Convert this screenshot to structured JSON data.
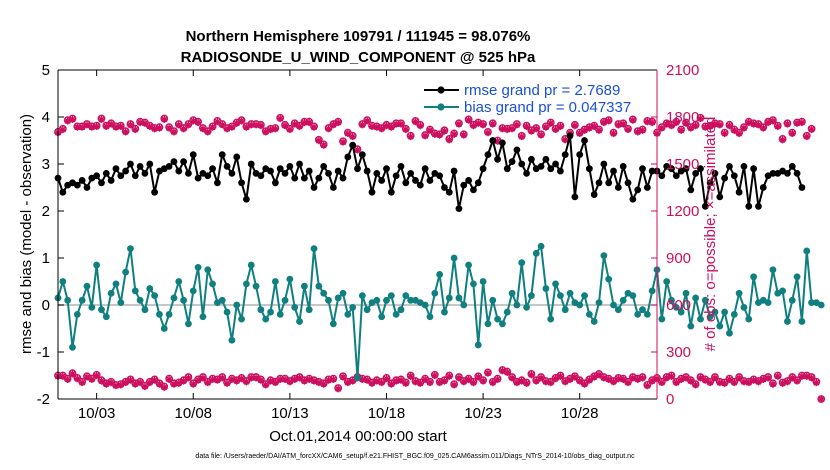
{
  "chart_data": {
    "type": "line",
    "title_line1": "Northern Hemisphere 109791 / 111945 = 98.076%",
    "title_line2": "RADIOSONDE_U_WIND_COMPONENT @ 525 hPa",
    "xlabel": "Oct.01,2014 00:00:00 start",
    "ylabel": "rmse and bias (model - observation)",
    "ylabel_right": "# of obs: o=possible; ×=assimilated",
    "footnote": "data file: /Users/raeder/DAI/ATM_forcXX/CAM6_setup/f.e21.FHIST_BGC.f09_025.CAM6assim.011/Diags_NTrS_2014-10/obs_diag_output.nc",
    "xlim": [
      1.0,
      32.0
    ],
    "ylim": [
      -2,
      5
    ],
    "ylim_right": [
      0,
      2100
    ],
    "x_ticks": [
      3,
      8,
      13,
      18,
      23,
      28
    ],
    "x_tick_labels": [
      "10/03",
      "10/08",
      "10/13",
      "10/18",
      "10/23",
      "10/28"
    ],
    "y_ticks": [
      "-2",
      "-1",
      "0",
      "1",
      "2",
      "3",
      "4",
      "5"
    ],
    "y_ticks_right": [
      "0",
      "300",
      "600",
      "900",
      "1200",
      "1500",
      "1800",
      "2100"
    ],
    "x_start": 1.0,
    "x_step": 0.25,
    "legend": [
      {
        "name": "rmse grand pr = 2.7689",
        "color": "#000000"
      },
      {
        "name": "bias grand pr = 0.047337",
        "color": "#0f7f7f"
      }
    ],
    "colors": {
      "rmse": "#000000",
      "bias": "#0f7f7f",
      "obs": "#cc0f5f",
      "zero": "#b3b3b3"
    },
    "series": [
      {
        "name": "rmse",
        "values": [
          2.7,
          2.4,
          2.55,
          2.6,
          2.55,
          2.65,
          2.5,
          2.7,
          2.75,
          2.6,
          2.8,
          2.65,
          2.9,
          2.75,
          2.85,
          3.0,
          2.75,
          2.95,
          2.8,
          3.0,
          2.4,
          2.85,
          2.9,
          2.95,
          3.05,
          2.85,
          3.05,
          2.8,
          3.2,
          2.7,
          2.8,
          2.75,
          2.9,
          2.6,
          3.2,
          2.95,
          2.8,
          3.15,
          2.6,
          2.25,
          3.0,
          2.8,
          2.75,
          2.9,
          2.85,
          2.6,
          2.9,
          2.8,
          2.95,
          2.7,
          3.0,
          2.7,
          2.85,
          2.5,
          2.7,
          2.95,
          2.8,
          2.5,
          2.85,
          2.7,
          3.15,
          3.4,
          2.9,
          3.2,
          2.85,
          2.4,
          2.8,
          2.65,
          2.9,
          2.4,
          2.75,
          2.95,
          2.6,
          2.8,
          2.65,
          2.55,
          2.9,
          2.65,
          2.8,
          2.75,
          2.5,
          2.4,
          2.85,
          2.05,
          2.55,
          2.65,
          2.45,
          2.6,
          2.9,
          3.2,
          3.5,
          3.1,
          3.45,
          2.9,
          3.05,
          3.3,
          3.0,
          2.8,
          3.1,
          2.9,
          2.95,
          3.1,
          2.9,
          3.0,
          2.85,
          3.2,
          3.6,
          2.3,
          3.2,
          3.5,
          2.9,
          2.35,
          2.6,
          3.0,
          2.6,
          2.85,
          2.5,
          2.95,
          2.6,
          2.25,
          2.45,
          2.9,
          2.5,
          2.85,
          2.85,
          2.75,
          2.95,
          2.9,
          2.75,
          2.85,
          2.9,
          2.45,
          2.8,
          2.9,
          2.1,
          2.6,
          2.8,
          2.3,
          2.7,
          2.95,
          2.75,
          2.4,
          2.95,
          2.1,
          2.9,
          2.1,
          2.5,
          2.75,
          2.8,
          2.8,
          2.85,
          2.8,
          2.95,
          2.8,
          2.5
        ],
        "style": "black dots with line"
      },
      {
        "name": "bias",
        "values": [
          0.15,
          0.5,
          0.1,
          -0.9,
          -0.2,
          0.1,
          0.4,
          -0.05,
          0.85,
          -0.1,
          -0.25,
          0.25,
          0.45,
          0.05,
          0.7,
          1.2,
          0.3,
          0.1,
          -0.1,
          0.35,
          0.2,
          -0.2,
          -0.5,
          -0.2,
          0.15,
          0.5,
          0.1,
          -0.4,
          0.3,
          0.8,
          -0.25,
          0.75,
          0.45,
          0.05,
          0.1,
          -0.15,
          -0.75,
          0.0,
          -0.3,
          0.45,
          0.85,
          0.4,
          -0.1,
          -0.3,
          -0.15,
          0.5,
          -0.2,
          0.1,
          0.55,
          -0.05,
          -0.35,
          0.4,
          -0.1,
          1.2,
          0.4,
          0.25,
          0.1,
          -0.4,
          0.15,
          0.25,
          -0.2,
          -0.05,
          -1.55,
          0.2,
          -0.1,
          0.05,
          0.1,
          -0.25,
          0.1,
          0.2,
          -0.2,
          -0.1,
          0.2,
          0.1,
          0.1,
          0.05,
          0.0,
          -0.25,
          0.25,
          0.65,
          -0.15,
          0.15,
          1.0,
          0.15,
          0.0,
          0.85,
          0.45,
          -0.85,
          0.5,
          -0.4,
          0.1,
          -0.3,
          -0.4,
          -0.15,
          0.25,
          0.0,
          0.9,
          -0.05,
          0.2,
          1.1,
          1.25,
          0.35,
          -0.3,
          0.45,
          0.2,
          -0.1,
          0.25,
          0.05,
          0.0,
          0.2,
          -0.2,
          -0.35,
          0.05,
          1.05,
          0.55,
          0.0,
          -0.1,
          0.1,
          0.25,
          0.2,
          -0.2,
          -0.1,
          -0.2,
          0.3,
          0.75,
          -0.3,
          0.5,
          0.1,
          -0.05,
          -0.15,
          0.25,
          -0.45,
          0.15,
          -0.3,
          0.1,
          -0.25,
          -0.15,
          -0.45,
          -0.15,
          -0.6,
          -0.2,
          0.25,
          -0.05,
          -0.3,
          0.6,
          0.05,
          0.1,
          0.05,
          0.75,
          0.25,
          0.3,
          -0.35,
          0.1,
          0.6,
          -0.35,
          1.15,
          0.05,
          0.05,
          0.0
        ],
        "style": "teal dots with line"
      },
      {
        "name": "obs possible",
        "values": [
          1705,
          1725,
          1780,
          1790,
          1740,
          1740,
          1755,
          1740,
          1745,
          1790,
          1745,
          1760,
          1740,
          1745,
          1710,
          1755,
          1725,
          1770,
          1765,
          1745,
          1730,
          1735,
          1790,
          1735,
          1710,
          1755,
          1730,
          1755,
          1780,
          1770,
          1730,
          1710,
          1740,
          1775,
          1755,
          1730,
          1740,
          1765,
          1780,
          1740,
          1755,
          1755,
          1750,
          1710,
          1725,
          1730,
          1795,
          1750,
          1725,
          1760,
          1745,
          1770,
          1770,
          1740,
          1655,
          1625,
          1730,
          1755,
          1770,
          1645,
          1700,
          1680,
          1595,
          1755,
          1780,
          1745,
          1740,
          1730,
          1750,
          1740,
          1760,
          1760,
          1725,
          1680,
          1775,
          1750,
          1685,
          1720,
          1695,
          1690,
          1715,
          1660,
          1695,
          1760,
          1690,
          1785,
          1750,
          1765,
          1755,
          1705,
          1760,
          1650,
          1730,
          1725,
          1730,
          1755,
          1680,
          1745,
          1715,
          1730,
          1690,
          1740,
          1765,
          1725,
          1745,
          1660,
          1700,
          1750,
          1700,
          1720,
          1735,
          1745,
          1720,
          1770,
          1780,
          1700,
          1755,
          1760,
          1725,
          1785,
          1710,
          1720,
          1775,
          1770,
          1700,
          1735,
          1760,
          1750,
          1770,
          1720,
          1765,
          1735,
          1750,
          1795,
          1740,
          1745,
          1760,
          1755,
          1700,
          1750,
          1720,
          1700,
          1735,
          1770,
          1760,
          1755,
          1735,
          1770,
          1780,
          1745,
          1660,
          1760,
          1700,
          1765,
          1770,
          1680,
          1725
        ],
        "style": "magenta circles (right axis)"
      },
      {
        "name": "obs assimilated",
        "values": [
          1700,
          1720,
          1775,
          1785,
          1735,
          1735,
          1750,
          1735,
          1740,
          1785,
          1740,
          1755,
          1735,
          1740,
          1705,
          1750,
          1720,
          1765,
          1760,
          1740,
          1725,
          1730,
          1785,
          1730,
          1705,
          1750,
          1725,
          1750,
          1775,
          1765,
          1725,
          1705,
          1735,
          1770,
          1750,
          1725,
          1735,
          1760,
          1775,
          1735,
          1750,
          1750,
          1745,
          1705,
          1720,
          1725,
          1790,
          1745,
          1720,
          1755,
          1740,
          1765,
          1765,
          1735,
          1650,
          1620,
          1725,
          1750,
          1765,
          1640,
          1695,
          1675,
          1590,
          1750,
          1775,
          1740,
          1735,
          1725,
          1745,
          1735,
          1755,
          1755,
          1720,
          1675,
          1770,
          1745,
          1680,
          1715,
          1690,
          1685,
          1710,
          1655,
          1690,
          1755,
          1685,
          1780,
          1745,
          1760,
          1750,
          1700,
          1755,
          1645,
          1725,
          1720,
          1725,
          1750,
          1675,
          1740,
          1710,
          1725,
          1685,
          1735,
          1760,
          1720,
          1740,
          1655,
          1695,
          1745,
          1695,
          1715,
          1730,
          1740,
          1715,
          1765,
          1775,
          1695,
          1750,
          1755,
          1720,
          1780,
          1705,
          1715,
          1770,
          1765,
          1695,
          1730,
          1755,
          1745,
          1765,
          1715,
          1760,
          1730,
          1745,
          1790,
          1735,
          1740,
          1755,
          1750,
          1695,
          1745,
          1715,
          1695,
          1730,
          1765,
          1755,
          1750,
          1730,
          1765,
          1775,
          1740,
          1655,
          1755,
          1695,
          1760,
          1765,
          1675,
          1720
        ],
        "style": "magenta asterisks (right axis)"
      },
      {
        "name": "obs possible (lower)",
        "values": [
          150,
          150,
          130,
          165,
          135,
          110,
          145,
          130,
          155,
          120,
          100,
          110,
          90,
          95,
          110,
          125,
          100,
          110,
          85,
          110,
          125,
          100,
          80,
          130,
          100,
          105,
          120,
          140,
          100,
          125,
          140,
          110,
          130,
          125,
          140,
          105,
          130,
          120,
          135,
          115,
          140,
          140,
          125,
          95,
          120,
          110,
          130,
          130,
          115,
          130,
          140,
          120,
          130,
          120,
          110,
          100,
          125,
          130,
          70,
          145,
          110,
          120,
          140,
          130,
          125,
          105,
          120,
          110,
          135,
          100,
          120,
          125,
          105,
          150,
          115,
          105,
          130,
          110,
          155,
          110,
          120,
          150,
          95,
          140,
          115,
          130,
          110,
          145,
          120,
          170,
          110,
          130,
          185,
          175,
          140,
          110,
          120,
          105,
          160,
          120,
          140,
          115,
          110,
          135,
          150,
          115,
          130,
          145,
          120,
          100,
          125,
          145,
          160,
          140,
          130,
          115,
          135,
          130,
          110,
          140,
          130,
          140,
          90,
          120,
          135,
          110,
          140,
          150,
          110,
          130,
          140,
          120,
          95,
          140,
          125,
          110,
          140,
          110,
          105,
          130,
          110,
          140,
          115,
          110,
          125,
          115,
          130,
          140,
          100,
          150,
          105,
          115,
          140,
          120,
          150,
          150,
          140,
          110,
          0
        ],
        "style": "magenta circles (right axis, lower)"
      },
      {
        "name": "obs assimilated (lower)",
        "values": [
          145,
          145,
          125,
          160,
          130,
          105,
          140,
          125,
          150,
          115,
          95,
          105,
          85,
          90,
          105,
          120,
          95,
          105,
          80,
          105,
          120,
          95,
          75,
          125,
          95,
          100,
          115,
          135,
          95,
          120,
          135,
          105,
          125,
          120,
          135,
          100,
          125,
          115,
          130,
          110,
          135,
          135,
          120,
          90,
          115,
          105,
          125,
          125,
          110,
          125,
          135,
          115,
          125,
          115,
          105,
          95,
          120,
          125,
          65,
          140,
          105,
          115,
          135,
          125,
          120,
          100,
          115,
          105,
          130,
          95,
          115,
          120,
          100,
          145,
          110,
          100,
          125,
          105,
          150,
          105,
          115,
          145,
          90,
          135,
          110,
          125,
          105,
          140,
          115,
          165,
          105,
          125,
          180,
          170,
          135,
          105,
          115,
          100,
          155,
          115,
          135,
          110,
          105,
          130,
          145,
          110,
          125,
          140,
          115,
          95,
          120,
          140,
          155,
          135,
          125,
          110,
          130,
          125,
          105,
          135,
          125,
          135,
          85,
          115,
          130,
          105,
          135,
          145,
          105,
          125,
          135,
          115,
          90,
          135,
          120,
          105,
          135,
          105,
          100,
          125,
          105,
          135,
          110,
          105,
          120,
          110,
          125,
          135,
          95,
          145,
          100,
          110,
          135,
          115,
          145,
          145,
          135,
          105,
          0
        ],
        "style": "magenta asterisks (right axis, lower)"
      }
    ]
  }
}
